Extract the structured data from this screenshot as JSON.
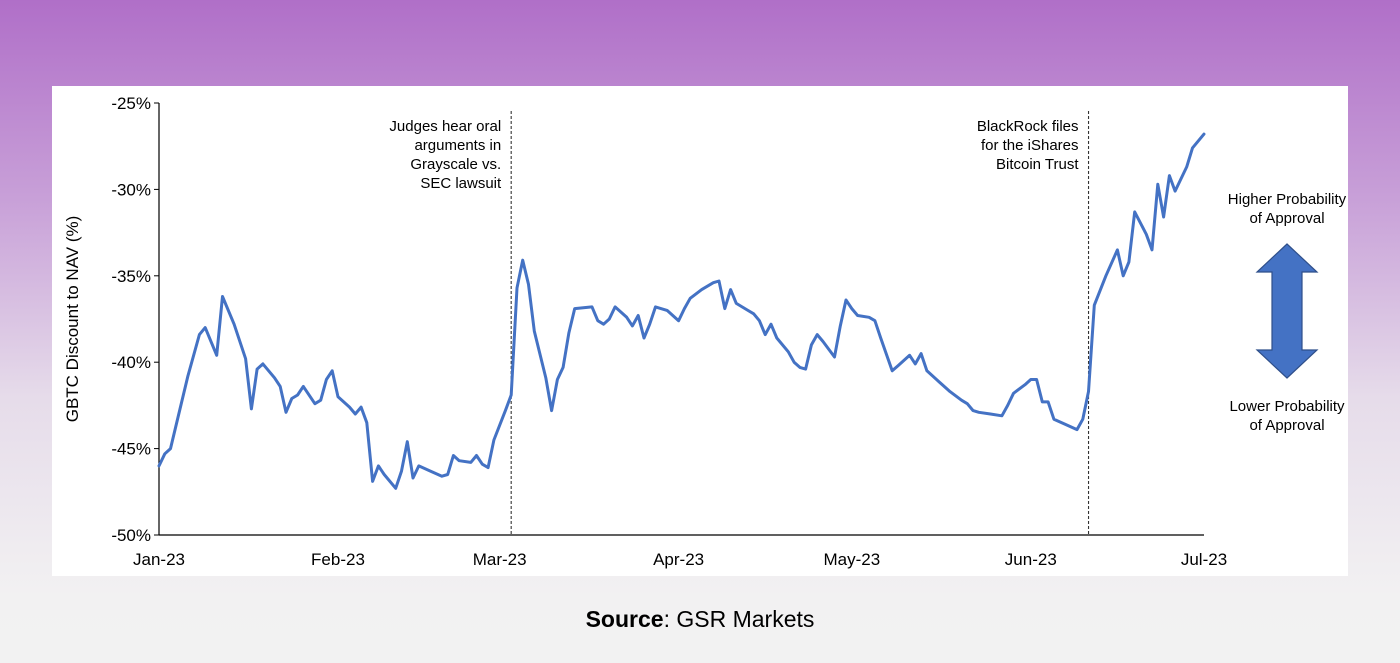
{
  "chart_data": {
    "type": "line",
    "ylabel": "GBTC Discount to NAV (%)",
    "ylim": [
      -50,
      -25
    ],
    "yticks": [
      -25,
      -30,
      -35,
      -40,
      -45,
      -50
    ],
    "ytick_labels": [
      "-25%",
      "-30%",
      "-35%",
      "-40%",
      "-45%",
      "-50%"
    ],
    "xlim": [
      "2023-01-01",
      "2023-07-01"
    ],
    "xticks": [
      "2023-01-01",
      "2023-02-01",
      "2023-03-01",
      "2023-04-01",
      "2023-05-01",
      "2023-06-01",
      "2023-07-01"
    ],
    "xtick_labels": [
      "Jan-23",
      "Feb-23",
      "Mar-23",
      "Apr-23",
      "May-23",
      "Jun-23",
      "Jul-23"
    ],
    "grid": false,
    "series": [
      {
        "color": "#4472c4",
        "points": [
          [
            "2023-01-01",
            -46.0
          ],
          [
            "2023-01-02",
            -45.3
          ],
          [
            "2023-01-03",
            -45.0
          ],
          [
            "2023-01-04",
            -43.6
          ],
          [
            "2023-01-06",
            -40.8
          ],
          [
            "2023-01-08",
            -38.4
          ],
          [
            "2023-01-09",
            -38.0
          ],
          [
            "2023-01-11",
            -39.6
          ],
          [
            "2023-01-12",
            -36.2
          ],
          [
            "2023-01-14",
            -37.8
          ],
          [
            "2023-01-16",
            -39.8
          ],
          [
            "2023-01-17",
            -42.7
          ],
          [
            "2023-01-18",
            -40.4
          ],
          [
            "2023-01-19",
            -40.1
          ],
          [
            "2023-01-21",
            -40.9
          ],
          [
            "2023-01-22",
            -41.4
          ],
          [
            "2023-01-23",
            -42.9
          ],
          [
            "2023-01-24",
            -42.1
          ],
          [
            "2023-01-25",
            -41.9
          ],
          [
            "2023-01-26",
            -41.4
          ],
          [
            "2023-01-28",
            -42.4
          ],
          [
            "2023-01-29",
            -42.2
          ],
          [
            "2023-01-30",
            -41.0
          ],
          [
            "2023-01-31",
            -40.5
          ],
          [
            "2023-02-01",
            -42.0
          ],
          [
            "2023-02-03",
            -42.6
          ],
          [
            "2023-02-04",
            -43.0
          ],
          [
            "2023-02-05",
            -42.6
          ],
          [
            "2023-02-06",
            -43.5
          ],
          [
            "2023-02-07",
            -46.9
          ],
          [
            "2023-02-08",
            -46.0
          ],
          [
            "2023-02-09",
            -46.5
          ],
          [
            "2023-02-11",
            -47.3
          ],
          [
            "2023-02-12",
            -46.3
          ],
          [
            "2023-02-13",
            -44.6
          ],
          [
            "2023-02-14",
            -46.7
          ],
          [
            "2023-02-15",
            -46.0
          ],
          [
            "2023-02-17",
            -46.3
          ],
          [
            "2023-02-19",
            -46.6
          ],
          [
            "2023-02-20",
            -46.5
          ],
          [
            "2023-02-21",
            -45.4
          ],
          [
            "2023-02-22",
            -45.7
          ],
          [
            "2023-02-24",
            -45.8
          ],
          [
            "2023-02-25",
            -45.4
          ],
          [
            "2023-02-26",
            -45.9
          ],
          [
            "2023-02-27",
            -46.1
          ],
          [
            "2023-02-28",
            -44.5
          ],
          [
            "2023-03-02",
            -42.8
          ],
          [
            "2023-03-03",
            -41.9
          ],
          [
            "2023-03-04",
            -35.7
          ],
          [
            "2023-03-05",
            -34.1
          ],
          [
            "2023-03-06",
            -35.5
          ],
          [
            "2023-03-07",
            -38.2
          ],
          [
            "2023-03-09",
            -40.9
          ],
          [
            "2023-03-10",
            -42.8
          ],
          [
            "2023-03-11",
            -41.0
          ],
          [
            "2023-03-12",
            -40.3
          ],
          [
            "2023-03-13",
            -38.3
          ],
          [
            "2023-03-14",
            -36.9
          ],
          [
            "2023-03-17",
            -36.8
          ],
          [
            "2023-03-18",
            -37.6
          ],
          [
            "2023-03-19",
            -37.8
          ],
          [
            "2023-03-20",
            -37.5
          ],
          [
            "2023-03-21",
            -36.8
          ],
          [
            "2023-03-23",
            -37.4
          ],
          [
            "2023-03-24",
            -37.9
          ],
          [
            "2023-03-25",
            -37.3
          ],
          [
            "2023-03-26",
            -38.6
          ],
          [
            "2023-03-27",
            -37.8
          ],
          [
            "2023-03-28",
            -36.8
          ],
          [
            "2023-03-30",
            -37.0
          ],
          [
            "2023-03-31",
            -37.3
          ],
          [
            "2023-04-01",
            -37.6
          ],
          [
            "2023-04-02",
            -36.9
          ],
          [
            "2023-04-03",
            -36.3
          ],
          [
            "2023-04-05",
            -35.8
          ],
          [
            "2023-04-07",
            -35.4
          ],
          [
            "2023-04-08",
            -35.3
          ],
          [
            "2023-04-09",
            -36.9
          ],
          [
            "2023-04-10",
            -35.8
          ],
          [
            "2023-04-11",
            -36.6
          ],
          [
            "2023-04-13",
            -37.0
          ],
          [
            "2023-04-14",
            -37.2
          ],
          [
            "2023-04-15",
            -37.6
          ],
          [
            "2023-04-16",
            -38.4
          ],
          [
            "2023-04-17",
            -37.8
          ],
          [
            "2023-04-18",
            -38.6
          ],
          [
            "2023-04-20",
            -39.4
          ],
          [
            "2023-04-21",
            -40.0
          ],
          [
            "2023-04-22",
            -40.3
          ],
          [
            "2023-04-23",
            -40.4
          ],
          [
            "2023-04-24",
            -39.0
          ],
          [
            "2023-04-25",
            -38.4
          ],
          [
            "2023-04-26",
            -38.8
          ],
          [
            "2023-04-28",
            -39.7
          ],
          [
            "2023-04-29",
            -37.9
          ],
          [
            "2023-04-30",
            -36.4
          ],
          [
            "2023-05-01",
            -36.9
          ],
          [
            "2023-05-02",
            -37.3
          ],
          [
            "2023-05-04",
            -37.4
          ],
          [
            "2023-05-05",
            -37.6
          ],
          [
            "2023-05-06",
            -38.6
          ],
          [
            "2023-05-08",
            -40.5
          ],
          [
            "2023-05-09",
            -40.2
          ],
          [
            "2023-05-10",
            -39.9
          ],
          [
            "2023-05-11",
            -39.6
          ],
          [
            "2023-05-12",
            -40.1
          ],
          [
            "2023-05-13",
            -39.5
          ],
          [
            "2023-05-14",
            -40.5
          ],
          [
            "2023-05-16",
            -41.1
          ],
          [
            "2023-05-18",
            -41.7
          ],
          [
            "2023-05-20",
            -42.2
          ],
          [
            "2023-05-21",
            -42.4
          ],
          [
            "2023-05-22",
            -42.8
          ],
          [
            "2023-05-23",
            -42.9
          ],
          [
            "2023-05-25",
            -43.0
          ],
          [
            "2023-05-27",
            -43.1
          ],
          [
            "2023-05-28",
            -42.5
          ],
          [
            "2023-05-29",
            -41.8
          ],
          [
            "2023-05-31",
            -41.3
          ],
          [
            "2023-06-01",
            -41.0
          ],
          [
            "2023-06-02",
            -41.0
          ],
          [
            "2023-06-03",
            -42.3
          ],
          [
            "2023-06-04",
            -42.3
          ],
          [
            "2023-06-05",
            -43.3
          ],
          [
            "2023-06-07",
            -43.6
          ],
          [
            "2023-06-09",
            -43.9
          ],
          [
            "2023-06-10",
            -43.3
          ],
          [
            "2023-06-11",
            -41.7
          ],
          [
            "2023-06-12",
            -36.7
          ],
          [
            "2023-06-14",
            -35.0
          ],
          [
            "2023-06-16",
            -33.5
          ],
          [
            "2023-06-17",
            -35.0
          ],
          [
            "2023-06-18",
            -34.2
          ],
          [
            "2023-06-19",
            -31.3
          ],
          [
            "2023-06-21",
            -32.6
          ],
          [
            "2023-06-22",
            -33.5
          ],
          [
            "2023-06-23",
            -29.7
          ],
          [
            "2023-06-24",
            -31.6
          ],
          [
            "2023-06-25",
            -29.2
          ],
          [
            "2023-06-26",
            -30.1
          ],
          [
            "2023-06-28",
            -28.7
          ],
          [
            "2023-06-29",
            -27.6
          ],
          [
            "2023-07-01",
            -26.8
          ]
        ]
      }
    ],
    "vlines": [
      {
        "x": "2023-03-03",
        "label": [
          "Judges hear oral",
          "arguments in",
          "Grayscale vs.",
          "SEC lawsuit"
        ]
      },
      {
        "x": "2023-06-11",
        "label": [
          "BlackRock files",
          "for the iShares",
          "Bitcoin Trust"
        ]
      }
    ],
    "side_annotation": {
      "top": [
        "Higher Probability",
        "of Approval"
      ],
      "bottom": [
        "Lower Probability",
        "of Approval"
      ],
      "arrow_color": "#4472c4",
      "arrow_icon": "double-headed-vertical-arrow"
    }
  },
  "source": {
    "label": "Source",
    "text": ": GSR Markets"
  }
}
